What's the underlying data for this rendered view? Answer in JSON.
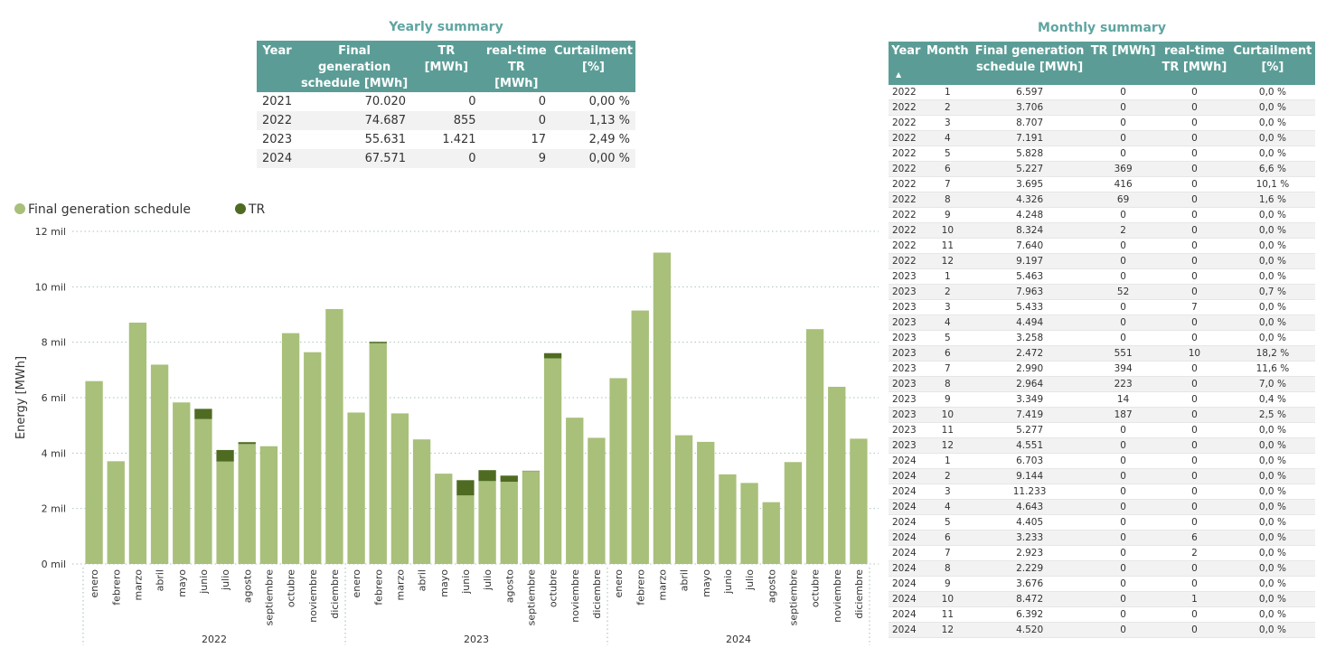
{
  "yearly_summary": {
    "title": "Yearly summary",
    "headers": [
      "Year",
      "Final generation schedule [MWh]",
      "TR [MWh]",
      "real-time TR [MWh]",
      "Curtailment [%]"
    ],
    "header_lines": [
      [
        "Year"
      ],
      [
        "Final generation",
        "schedule [MWh]"
      ],
      [
        "TR [MWh]"
      ],
      [
        "real-time",
        "TR [MWh]"
      ],
      [
        "Curtailment",
        "[%]"
      ]
    ],
    "rows": [
      [
        "2021",
        "70.020",
        "0",
        "0",
        "0,00 %"
      ],
      [
        "2022",
        "74.687",
        "855",
        "0",
        "1,13 %"
      ],
      [
        "2023",
        "55.631",
        "1.421",
        "17",
        "2,49 %"
      ],
      [
        "2024",
        "67.571",
        "0",
        "9",
        "0,00 %"
      ]
    ]
  },
  "monthly_summary": {
    "title": "Monthly summary",
    "headers": [
      "Year",
      "Month",
      "Final generation schedule [MWh]",
      "TR [MWh]",
      "real-time TR [MWh]",
      "Curtailment [%]"
    ],
    "header_lines": [
      [
        "Year"
      ],
      [
        "Month"
      ],
      [
        "Final generation",
        "schedule [MWh]"
      ],
      [
        "TR [MWh]"
      ],
      [
        "real-time",
        "TR [MWh]"
      ],
      [
        "Curtailment",
        "[%]"
      ]
    ],
    "sort_icon": "sort-ascending-icon",
    "rows": [
      [
        "2022",
        "1",
        "6.597",
        "0",
        "0",
        "0,0 %"
      ],
      [
        "2022",
        "2",
        "3.706",
        "0",
        "0",
        "0,0 %"
      ],
      [
        "2022",
        "3",
        "8.707",
        "0",
        "0",
        "0,0 %"
      ],
      [
        "2022",
        "4",
        "7.191",
        "0",
        "0",
        "0,0 %"
      ],
      [
        "2022",
        "5",
        "5.828",
        "0",
        "0",
        "0,0 %"
      ],
      [
        "2022",
        "6",
        "5.227",
        "369",
        "0",
        "6,6 %"
      ],
      [
        "2022",
        "7",
        "3.695",
        "416",
        "0",
        "10,1 %"
      ],
      [
        "2022",
        "8",
        "4.326",
        "69",
        "0",
        "1,6 %"
      ],
      [
        "2022",
        "9",
        "4.248",
        "0",
        "0",
        "0,0 %"
      ],
      [
        "2022",
        "10",
        "8.324",
        "2",
        "0",
        "0,0 %"
      ],
      [
        "2022",
        "11",
        "7.640",
        "0",
        "0",
        "0,0 %"
      ],
      [
        "2022",
        "12",
        "9.197",
        "0",
        "0",
        "0,0 %"
      ],
      [
        "2023",
        "1",
        "5.463",
        "0",
        "0",
        "0,0 %"
      ],
      [
        "2023",
        "2",
        "7.963",
        "52",
        "0",
        "0,7 %"
      ],
      [
        "2023",
        "3",
        "5.433",
        "0",
        "7",
        "0,0 %"
      ],
      [
        "2023",
        "4",
        "4.494",
        "0",
        "0",
        "0,0 %"
      ],
      [
        "2023",
        "5",
        "3.258",
        "0",
        "0",
        "0,0 %"
      ],
      [
        "2023",
        "6",
        "2.472",
        "551",
        "10",
        "18,2 %"
      ],
      [
        "2023",
        "7",
        "2.990",
        "394",
        "0",
        "11,6 %"
      ],
      [
        "2023",
        "8",
        "2.964",
        "223",
        "0",
        "7,0 %"
      ],
      [
        "2023",
        "9",
        "3.349",
        "14",
        "0",
        "0,4 %"
      ],
      [
        "2023",
        "10",
        "7.419",
        "187",
        "0",
        "2,5 %"
      ],
      [
        "2023",
        "11",
        "5.277",
        "0",
        "0",
        "0,0 %"
      ],
      [
        "2023",
        "12",
        "4.551",
        "0",
        "0",
        "0,0 %"
      ],
      [
        "2024",
        "1",
        "6.703",
        "0",
        "0",
        "0,0 %"
      ],
      [
        "2024",
        "2",
        "9.144",
        "0",
        "0",
        "0,0 %"
      ],
      [
        "2024",
        "3",
        "11.233",
        "0",
        "0",
        "0,0 %"
      ],
      [
        "2024",
        "4",
        "4.643",
        "0",
        "0",
        "0,0 %"
      ],
      [
        "2024",
        "5",
        "4.405",
        "0",
        "0",
        "0,0 %"
      ],
      [
        "2024",
        "6",
        "3.233",
        "0",
        "6",
        "0,0 %"
      ],
      [
        "2024",
        "7",
        "2.923",
        "0",
        "2",
        "0,0 %"
      ],
      [
        "2024",
        "8",
        "2.229",
        "0",
        "0",
        "0,0 %"
      ],
      [
        "2024",
        "9",
        "3.676",
        "0",
        "0",
        "0,0 %"
      ],
      [
        "2024",
        "10",
        "8.472",
        "0",
        "1",
        "0,0 %"
      ],
      [
        "2024",
        "11",
        "6.392",
        "0",
        "0",
        "0,0 %"
      ],
      [
        "2024",
        "12",
        "4.520",
        "0",
        "0",
        "0,0 %"
      ]
    ]
  },
  "chart_data": {
    "type": "bar",
    "stacked": true,
    "ylabel": "Energy [MWh]",
    "ylim": [
      0,
      12000
    ],
    "yticks": [
      0,
      2000,
      4000,
      6000,
      8000,
      10000,
      12000
    ],
    "ytick_labels": [
      "0 mil",
      "2 mil",
      "4 mil",
      "6 mil",
      "8 mil",
      "10 mil",
      "12 mil"
    ],
    "grid": true,
    "legend_position": "top-left",
    "month_labels": [
      "enero",
      "febrero",
      "marzo",
      "abril",
      "mayo",
      "junio",
      "julio",
      "agosto",
      "septiembre",
      "octubre",
      "noviembre",
      "diciembre"
    ],
    "years": [
      "2022",
      "2023",
      "2024"
    ],
    "series": [
      {
        "name": "Final generation schedule",
        "color": "#a8c07a",
        "values": [
          6597,
          3706,
          8707,
          7191,
          5828,
          5227,
          3695,
          4326,
          4248,
          8324,
          7640,
          9197,
          5463,
          7963,
          5433,
          4494,
          3258,
          2472,
          2990,
          2964,
          3349,
          7419,
          5277,
          4551,
          6703,
          9144,
          11233,
          4643,
          4405,
          3233,
          2923,
          2229,
          3676,
          8472,
          6392,
          4520
        ]
      },
      {
        "name": "TR",
        "color": "#4f6b22",
        "values": [
          0,
          0,
          0,
          0,
          0,
          369,
          416,
          69,
          0,
          2,
          0,
          0,
          0,
          52,
          0,
          0,
          0,
          551,
          394,
          223,
          14,
          187,
          0,
          0,
          0,
          0,
          0,
          0,
          0,
          0,
          0,
          0,
          0,
          0,
          0,
          0
        ]
      }
    ]
  }
}
